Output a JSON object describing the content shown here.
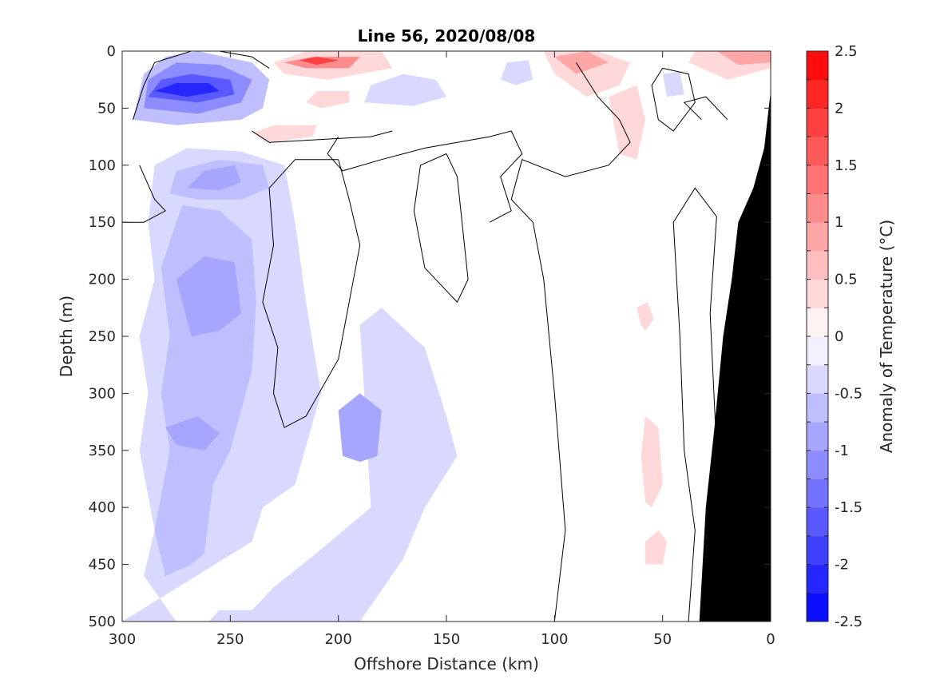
{
  "chart_data": {
    "type": "heatmap",
    "title": "Line 56, 2020/08/08",
    "xlabel": "Offshore Distance (km)",
    "ylabel": "Depth (m)",
    "xlim": [
      300,
      0
    ],
    "ylim": [
      0,
      500
    ],
    "x_ticks": [
      300,
      250,
      200,
      150,
      100,
      50,
      0
    ],
    "y_ticks": [
      0,
      50,
      100,
      150,
      200,
      250,
      300,
      350,
      400,
      450,
      500
    ],
    "x_reversed": true,
    "y_reversed": true,
    "colorbar": {
      "label": "Anomaly of Temperature (°C)",
      "range": [
        -2.5,
        2.5
      ],
      "step": 0.25,
      "tick_values": [
        2.5,
        2,
        1.5,
        1,
        0.5,
        0,
        -0.5,
        -1,
        -1.5,
        -2,
        -2.5
      ],
      "tick_labels": [
        "2.5",
        "2",
        "1.5",
        "1",
        "0.5",
        "0",
        "-0.5",
        "-1",
        "-1.5",
        "-2",
        "-2.5"
      ],
      "color_low": "#0000ff",
      "color_mid": "#ffffff",
      "color_high": "#ff0000"
    },
    "bathymetry_color": "#000000",
    "anomaly_regions": [
      {
        "value": -0.375,
        "polygon": [
          [
            275,
            500
          ],
          [
            290,
            460
          ],
          [
            285,
            420
          ],
          [
            292,
            350
          ],
          [
            288,
            300
          ],
          [
            292,
            250
          ],
          [
            285,
            200
          ],
          [
            288,
            150
          ],
          [
            285,
            100
          ],
          [
            270,
            85
          ],
          [
            245,
            88
          ],
          [
            225,
            100
          ],
          [
            220,
            150
          ],
          [
            215,
            220
          ],
          [
            208,
            300
          ],
          [
            220,
            380
          ],
          [
            235,
            400
          ],
          [
            240,
            430
          ],
          [
            300,
            500
          ]
        ]
      },
      {
        "value": -0.375,
        "polygon": [
          [
            245,
            500
          ],
          [
            230,
            470
          ],
          [
            210,
            440
          ],
          [
            185,
            400
          ],
          [
            188,
            300
          ],
          [
            190,
            240
          ],
          [
            180,
            225
          ],
          [
            160,
            260
          ],
          [
            150,
            320
          ],
          [
            145,
            355
          ],
          [
            160,
            400
          ],
          [
            170,
            445
          ],
          [
            190,
            500
          ]
        ]
      },
      {
        "value": -0.625,
        "polygon": [
          [
            280,
            460
          ],
          [
            285,
            420
          ],
          [
            278,
            350
          ],
          [
            282,
            300
          ],
          [
            278,
            250
          ],
          [
            282,
            190
          ],
          [
            275,
            150
          ],
          [
            272,
            135
          ],
          [
            255,
            140
          ],
          [
            240,
            165
          ],
          [
            238,
            220
          ],
          [
            240,
            280
          ],
          [
            250,
            350
          ],
          [
            258,
            380
          ],
          [
            262,
            440
          ],
          [
            268,
            450
          ]
        ]
      },
      {
        "value": -0.625,
        "polygon": [
          [
            278,
            125
          ],
          [
            275,
            105
          ],
          [
            255,
            95
          ],
          [
            235,
            100
          ],
          [
            232,
            120
          ],
          [
            245,
            130
          ],
          [
            265,
            130
          ]
        ]
      },
      {
        "value": -0.875,
        "polygon": [
          [
            270,
            120
          ],
          [
            262,
            105
          ],
          [
            248,
            100
          ],
          [
            245,
            115
          ],
          [
            255,
            122
          ]
        ]
      },
      {
        "value": -0.875,
        "polygon": [
          [
            268,
            250
          ],
          [
            275,
            200
          ],
          [
            262,
            180
          ],
          [
            248,
            185
          ],
          [
            245,
            230
          ],
          [
            255,
            245
          ]
        ]
      },
      {
        "value": -0.875,
        "polygon": [
          [
            275,
            345
          ],
          [
            280,
            330
          ],
          [
            265,
            320
          ],
          [
            255,
            335
          ],
          [
            262,
            350
          ]
        ]
      },
      {
        "value": -0.875,
        "polygon": [
          [
            198,
            355
          ],
          [
            200,
            315
          ],
          [
            190,
            300
          ],
          [
            180,
            315
          ],
          [
            182,
            355
          ],
          [
            190,
            360
          ]
        ]
      },
      {
        "value": -0.375,
        "polygon": [
          [
            260,
            500
          ],
          [
            255,
            490
          ],
          [
            240,
            490
          ],
          [
            235,
            500
          ]
        ]
      },
      {
        "value": -0.625,
        "polygon": [
          [
            295,
            60
          ],
          [
            290,
            20
          ],
          [
            280,
            5
          ],
          [
            265,
            0
          ],
          [
            240,
            10
          ],
          [
            232,
            25
          ],
          [
            235,
            50
          ],
          [
            245,
            60
          ],
          [
            275,
            65
          ]
        ]
      },
      {
        "value": -1.125,
        "polygon": [
          [
            290,
            50
          ],
          [
            288,
            25
          ],
          [
            275,
            10
          ],
          [
            255,
            12
          ],
          [
            240,
            25
          ],
          [
            245,
            45
          ],
          [
            265,
            55
          ]
        ]
      },
      {
        "value": -1.625,
        "polygon": [
          [
            288,
            40
          ],
          [
            282,
            25
          ],
          [
            268,
            20
          ],
          [
            250,
            25
          ],
          [
            248,
            38
          ],
          [
            265,
            45
          ]
        ]
      },
      {
        "value": -2.125,
        "polygon": [
          [
            285,
            35
          ],
          [
            275,
            28
          ],
          [
            260,
            28
          ],
          [
            255,
            35
          ],
          [
            270,
            40
          ]
        ]
      },
      {
        "value": -0.375,
        "polygon": [
          [
            188,
            45
          ],
          [
            185,
            30
          ],
          [
            170,
            20
          ],
          [
            155,
            25
          ],
          [
            150,
            40
          ],
          [
            165,
            48
          ]
        ]
      },
      {
        "value": -0.375,
        "polygon": [
          [
            125,
            25
          ],
          [
            122,
            10
          ],
          [
            112,
            8
          ],
          [
            110,
            25
          ],
          [
            118,
            30
          ]
        ]
      },
      {
        "value": -0.375,
        "polygon": [
          [
            48,
            40
          ],
          [
            50,
            20
          ],
          [
            42,
            18
          ],
          [
            40,
            38
          ]
        ]
      },
      {
        "value": 0.375,
        "polygon": [
          [
            230,
            10
          ],
          [
            215,
            0
          ],
          [
            180,
            0
          ],
          [
            175,
            15
          ],
          [
            205,
            25
          ],
          [
            225,
            20
          ]
        ]
      },
      {
        "value": 1.125,
        "polygon": [
          [
            225,
            10
          ],
          [
            212,
            5
          ],
          [
            190,
            5
          ],
          [
            195,
            15
          ],
          [
            215,
            15
          ]
        ]
      },
      {
        "value": 1.875,
        "polygon": [
          [
            218,
            8
          ],
          [
            210,
            5
          ],
          [
            200,
            8
          ],
          [
            210,
            12
          ]
        ]
      },
      {
        "value": 0.375,
        "polygon": [
          [
            105,
            0
          ],
          [
            80,
            0
          ],
          [
            65,
            10
          ],
          [
            70,
            30
          ],
          [
            85,
            40
          ],
          [
            100,
            20
          ]
        ]
      },
      {
        "value": 0.875,
        "polygon": [
          [
            100,
            5
          ],
          [
            85,
            0
          ],
          [
            75,
            10
          ],
          [
            90,
            20
          ]
        ]
      },
      {
        "value": 0.375,
        "polygon": [
          [
            35,
            0
          ],
          [
            0,
            0
          ],
          [
            0,
            15
          ],
          [
            20,
            25
          ],
          [
            38,
            10
          ]
        ]
      },
      {
        "value": 0.875,
        "polygon": [
          [
            25,
            0
          ],
          [
            0,
            0
          ],
          [
            0,
            10
          ],
          [
            15,
            12
          ]
        ]
      },
      {
        "value": 0.375,
        "polygon": [
          [
            75,
            40
          ],
          [
            70,
            90
          ],
          [
            62,
            95
          ],
          [
            58,
            60
          ],
          [
            62,
            30
          ]
        ]
      },
      {
        "value": 0.375,
        "polygon": [
          [
            60,
            355
          ],
          [
            58,
            320
          ],
          [
            52,
            330
          ],
          [
            50,
            380
          ],
          [
            55,
            400
          ],
          [
            58,
            395
          ]
        ]
      },
      {
        "value": 0.375,
        "polygon": [
          [
            58,
            450
          ],
          [
            58,
            430
          ],
          [
            52,
            420
          ],
          [
            48,
            430
          ],
          [
            50,
            450
          ]
        ]
      },
      {
        "value": 0.375,
        "polygon": [
          [
            60,
            240
          ],
          [
            62,
            225
          ],
          [
            57,
            220
          ],
          [
            54,
            235
          ],
          [
            58,
            245
          ]
        ]
      },
      {
        "value": 0.375,
        "polygon": [
          [
            240,
            72
          ],
          [
            230,
            65
          ],
          [
            210,
            65
          ],
          [
            212,
            75
          ],
          [
            232,
            80
          ]
        ]
      },
      {
        "value": 0.375,
        "polygon": [
          [
            215,
            45
          ],
          [
            210,
            35
          ],
          [
            195,
            35
          ],
          [
            195,
            45
          ],
          [
            208,
            50
          ]
        ]
      }
    ],
    "zero_contours": [
      [
        [
          295,
          60
        ],
        [
          290,
          30
        ],
        [
          285,
          10
        ],
        [
          268,
          0
        ]
      ],
      [
        [
          232,
          15
        ],
        [
          240,
          5
        ],
        [
          255,
          0
        ]
      ],
      [
        [
          240,
          70
        ],
        [
          232,
          80
        ],
        [
          185,
          75
        ],
        [
          175,
          70
        ]
      ],
      [
        [
          200,
          75
        ],
        [
          205,
          90
        ],
        [
          198,
          105
        ],
        [
          180,
          95
        ],
        [
          160,
          85
        ],
        [
          130,
          75
        ],
        [
          120,
          70
        ],
        [
          115,
          90
        ],
        [
          125,
          110
        ],
        [
          120,
          140
        ],
        [
          130,
          150
        ]
      ],
      [
        [
          200,
          95
        ],
        [
          195,
          130
        ],
        [
          190,
          170
        ],
        [
          195,
          220
        ],
        [
          200,
          270
        ],
        [
          215,
          320
        ],
        [
          225,
          330
        ],
        [
          230,
          300
        ],
        [
          228,
          260
        ],
        [
          235,
          220
        ],
        [
          230,
          170
        ],
        [
          232,
          120
        ],
        [
          220,
          95
        ],
        [
          200,
          95
        ]
      ],
      [
        [
          150,
          90
        ],
        [
          145,
          110
        ],
        [
          140,
          200
        ],
        [
          145,
          220
        ],
        [
          160,
          190
        ],
        [
          165,
          140
        ],
        [
          162,
          100
        ],
        [
          150,
          90
        ]
      ],
      [
        [
          90,
          10
        ],
        [
          80,
          40
        ],
        [
          70,
          60
        ],
        [
          65,
          80
        ],
        [
          75,
          100
        ],
        [
          95,
          110
        ],
        [
          115,
          95
        ],
        [
          120,
          130
        ],
        [
          110,
          150
        ],
        [
          105,
          200
        ],
        [
          100,
          300
        ],
        [
          95,
          420
        ],
        [
          100,
          500
        ]
      ],
      [
        [
          50,
          15
        ],
        [
          55,
          30
        ],
        [
          52,
          60
        ],
        [
          45,
          70
        ],
        [
          35,
          45
        ],
        [
          38,
          20
        ],
        [
          50,
          15
        ]
      ],
      [
        [
          20,
          60
        ],
        [
          30,
          40
        ],
        [
          40,
          45
        ],
        [
          32,
          60
        ]
      ],
      [
        [
          38,
          500
        ],
        [
          35,
          420
        ],
        [
          40,
          350
        ],
        [
          42,
          250
        ],
        [
          45,
          150
        ],
        [
          35,
          120
        ],
        [
          25,
          145
        ],
        [
          28,
          230
        ],
        [
          25,
          350
        ],
        [
          30,
          500
        ]
      ],
      [
        [
          292,
          100
        ],
        [
          285,
          130
        ],
        [
          280,
          140
        ],
        [
          290,
          150
        ],
        [
          300,
          150
        ]
      ]
    ],
    "bathymetry": [
      [
        33,
        500
      ],
      [
        30,
        400
      ],
      [
        26,
        330
      ],
      [
        22,
        250
      ],
      [
        18,
        200
      ],
      [
        15,
        150
      ],
      [
        8,
        120
      ],
      [
        3,
        85
      ],
      [
        0,
        35
      ],
      [
        0,
        500
      ]
    ]
  }
}
